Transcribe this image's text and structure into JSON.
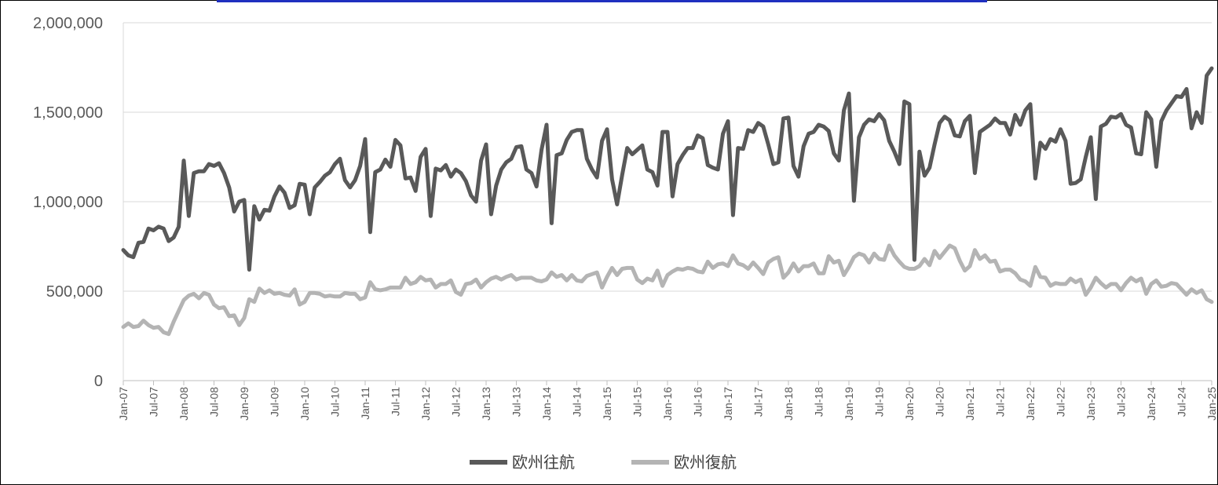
{
  "chart_data": {
    "type": "line",
    "ylim": [
      0,
      2000000
    ],
    "y_ticks": [
      "0",
      "500,000",
      "1,000,000",
      "1,500,000",
      "2,000,000"
    ],
    "x_tick_labels": [
      "Jan-07",
      "Jul-07",
      "Jan-08",
      "Jul-08",
      "Jan-09",
      "Jul-09",
      "Jan-10",
      "Jul-10",
      "Jan-11",
      "Jul-11",
      "Jan-12",
      "Jul-12",
      "Jan-13",
      "Jul-13",
      "Jan-14",
      "Jul-14",
      "Jan-15",
      "Jul-15",
      "Jan-16",
      "Jul-16",
      "Jan-17",
      "Jul-17",
      "Jan-18",
      "Jul-18",
      "Jan-19",
      "Jul-19",
      "Jan-20",
      "Jul-20",
      "Jan-21",
      "Jul-21",
      "Jan-22",
      "Jul-22",
      "Jan-23",
      "Jul-23",
      "Jan-24",
      "Jul-24",
      "Jan-25"
    ],
    "x_start": "Jan-07",
    "grid": "horizontal",
    "legend_position": "bottom-center",
    "series": [
      {
        "name": "欧州往航",
        "color": "#595959",
        "values": [
          730000,
          700000,
          690000,
          770000,
          775000,
          850000,
          840000,
          860000,
          850000,
          780000,
          800000,
          860000,
          1230000,
          920000,
          1160000,
          1170000,
          1170000,
          1210000,
          1200000,
          1215000,
          1160000,
          1080000,
          945000,
          1000000,
          1010000,
          620000,
          975000,
          900000,
          955000,
          950000,
          1030000,
          1085000,
          1050000,
          965000,
          980000,
          1100000,
          1095000,
          930000,
          1080000,
          1110000,
          1145000,
          1165000,
          1210000,
          1240000,
          1120000,
          1080000,
          1120000,
          1200000,
          1350000,
          830000,
          1165000,
          1180000,
          1235000,
          1195000,
          1345000,
          1315000,
          1130000,
          1135000,
          1060000,
          1250000,
          1295000,
          920000,
          1185000,
          1175000,
          1205000,
          1140000,
          1180000,
          1160000,
          1115000,
          1035000,
          1000000,
          1230000,
          1320000,
          930000,
          1090000,
          1180000,
          1220000,
          1240000,
          1305000,
          1310000,
          1180000,
          1160000,
          1085000,
          1290000,
          1430000,
          880000,
          1260000,
          1270000,
          1345000,
          1390000,
          1400000,
          1400000,
          1240000,
          1180000,
          1135000,
          1340000,
          1405000,
          1125000,
          985000,
          1150000,
          1300000,
          1265000,
          1290000,
          1315000,
          1180000,
          1165000,
          1090000,
          1390000,
          1390000,
          1030000,
          1210000,
          1260000,
          1300000,
          1300000,
          1370000,
          1355000,
          1205000,
          1190000,
          1180000,
          1380000,
          1450000,
          925000,
          1300000,
          1295000,
          1400000,
          1390000,
          1440000,
          1420000,
          1320000,
          1210000,
          1220000,
          1465000,
          1470000,
          1200000,
          1140000,
          1310000,
          1380000,
          1390000,
          1430000,
          1420000,
          1395000,
          1270000,
          1230000,
          1510000,
          1605000,
          1005000,
          1360000,
          1430000,
          1460000,
          1450000,
          1490000,
          1455000,
          1340000,
          1280000,
          1210000,
          1560000,
          1545000,
          675000,
          1280000,
          1145000,
          1190000,
          1320000,
          1440000,
          1475000,
          1455000,
          1370000,
          1365000,
          1450000,
          1480000,
          1160000,
          1390000,
          1410000,
          1430000,
          1465000,
          1440000,
          1440000,
          1375000,
          1485000,
          1430000,
          1510000,
          1545000,
          1130000,
          1330000,
          1295000,
          1350000,
          1335000,
          1405000,
          1340000,
          1100000,
          1105000,
          1125000,
          1250000,
          1360000,
          1015000,
          1420000,
          1435000,
          1475000,
          1470000,
          1490000,
          1430000,
          1415000,
          1270000,
          1265000,
          1500000,
          1460000,
          1195000,
          1450000,
          1510000,
          1550000,
          1590000,
          1585000,
          1630000,
          1410000,
          1500000,
          1440000,
          1705000,
          1745000
        ]
      },
      {
        "name": "欧州復航",
        "color": "#b4b4b4",
        "values": [
          300000,
          320000,
          300000,
          305000,
          335000,
          310000,
          295000,
          300000,
          270000,
          260000,
          330000,
          390000,
          450000,
          475000,
          485000,
          460000,
          490000,
          480000,
          425000,
          405000,
          410000,
          360000,
          365000,
          310000,
          350000,
          455000,
          440000,
          515000,
          490000,
          505000,
          485000,
          490000,
          480000,
          475000,
          510000,
          425000,
          440000,
          490000,
          490000,
          485000,
          470000,
          475000,
          470000,
          470000,
          490000,
          485000,
          485000,
          455000,
          465000,
          550000,
          510000,
          505000,
          510000,
          520000,
          520000,
          520000,
          575000,
          540000,
          550000,
          580000,
          560000,
          565000,
          520000,
          540000,
          540000,
          560000,
          495000,
          480000,
          540000,
          545000,
          565000,
          520000,
          550000,
          570000,
          580000,
          565000,
          580000,
          590000,
          565000,
          575000,
          575000,
          575000,
          560000,
          555000,
          565000,
          605000,
          580000,
          590000,
          560000,
          590000,
          560000,
          555000,
          585000,
          595000,
          605000,
          520000,
          580000,
          630000,
          590000,
          625000,
          630000,
          630000,
          565000,
          545000,
          570000,
          560000,
          615000,
          530000,
          590000,
          610000,
          625000,
          620000,
          630000,
          625000,
          610000,
          605000,
          665000,
          630000,
          650000,
          655000,
          640000,
          700000,
          655000,
          645000,
          625000,
          660000,
          630000,
          595000,
          660000,
          680000,
          690000,
          575000,
          605000,
          655000,
          610000,
          640000,
          640000,
          655000,
          600000,
          600000,
          695000,
          660000,
          670000,
          590000,
          635000,
          690000,
          710000,
          700000,
          660000,
          710000,
          680000,
          675000,
          755000,
          700000,
          665000,
          635000,
          625000,
          625000,
          640000,
          680000,
          645000,
          725000,
          685000,
          720000,
          755000,
          740000,
          670000,
          615000,
          640000,
          730000,
          680000,
          700000,
          665000,
          670000,
          610000,
          620000,
          620000,
          600000,
          565000,
          555000,
          530000,
          635000,
          580000,
          575000,
          530000,
          545000,
          540000,
          540000,
          570000,
          550000,
          565000,
          480000,
          520000,
          575000,
          545000,
          520000,
          540000,
          540000,
          505000,
          545000,
          575000,
          555000,
          570000,
          485000,
          540000,
          560000,
          525000,
          530000,
          545000,
          540000,
          510000,
          480000,
          510000,
          490000,
          505000,
          455000,
          440000
        ]
      }
    ]
  }
}
